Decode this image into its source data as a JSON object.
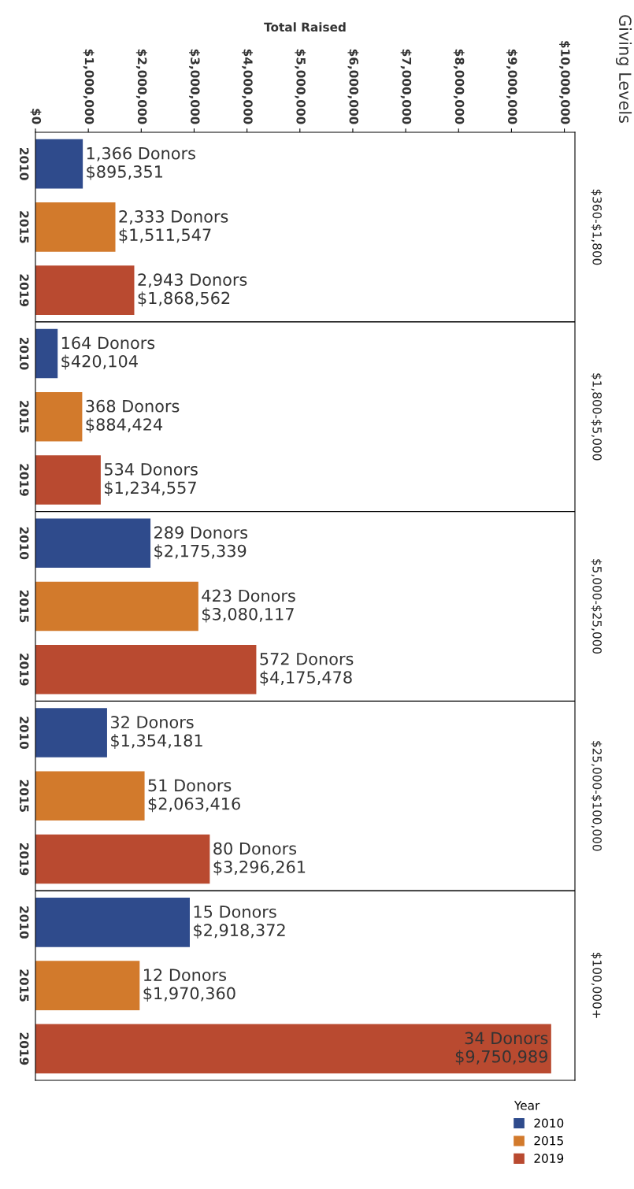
{
  "chart_data": {
    "type": "bar",
    "orientation": "horizontal",
    "title": "Giving Levels",
    "xlabel": "Total Raised",
    "legend": "bottom right",
    "legend_title": "Year",
    "categories": [
      "$360-$1,800",
      "$1,800-$5,000",
      "$5,000-$25,000",
      "$25,000-$100,000",
      "$100,000+"
    ],
    "series": [
      {
        "name": "2010",
        "color": "#2f4b8c",
        "values": [
          895351,
          420104,
          2175339,
          1354181,
          2918372
        ],
        "value_labels": [
          "1,366 Donors\n$895,351",
          "164 Donors\n$420,104",
          "289 Donors\n$2,175,339",
          "32 Donors\n$1,354,181",
          "15 Donors\n$2,918,372"
        ]
      },
      {
        "name": "2015",
        "color": "#d27a2c",
        "values": [
          1511547,
          884424,
          3080117,
          2063416,
          1970360
        ],
        "value_labels": [
          "2,333 Donors\n$1,511,547",
          "368 Donors\n$884,424",
          "423 Donors\n$3,080,117",
          "51 Donors\n$2,063,416",
          "12 Donors\n$1,970,360"
        ]
      },
      {
        "name": "2019",
        "color": "#b94a30",
        "values": [
          1868562,
          1234557,
          4175478,
          3296261,
          9750989
        ],
        "value_labels": [
          "2,943 Donors\n$1,868,562",
          "534 Donors\n$1,234,557",
          "572 Donors\n$4,175,478",
          "80 Donors\n$3,296,261",
          "34 Donors\n$9,750,989"
        ]
      }
    ],
    "xlim": [
      0,
      10200000
    ],
    "xticks": [
      {
        "value": 0,
        "label": "$0"
      },
      {
        "value": 1000000,
        "label": "$1,000,000"
      },
      {
        "value": 2000000,
        "label": "$2,000,000"
      },
      {
        "value": 3000000,
        "label": "$3,000,000"
      },
      {
        "value": 4000000,
        "label": "$4,000,000"
      },
      {
        "value": 5000000,
        "label": "$5,000,000"
      },
      {
        "value": 6000000,
        "label": "$6,000,000"
      },
      {
        "value": 7000000,
        "label": "$7,000,000"
      },
      {
        "value": 8000000,
        "label": "$8,000,000"
      },
      {
        "value": 9000000,
        "label": "$9,000,000"
      },
      {
        "value": 10000000,
        "label": "$10,000,000"
      }
    ]
  }
}
